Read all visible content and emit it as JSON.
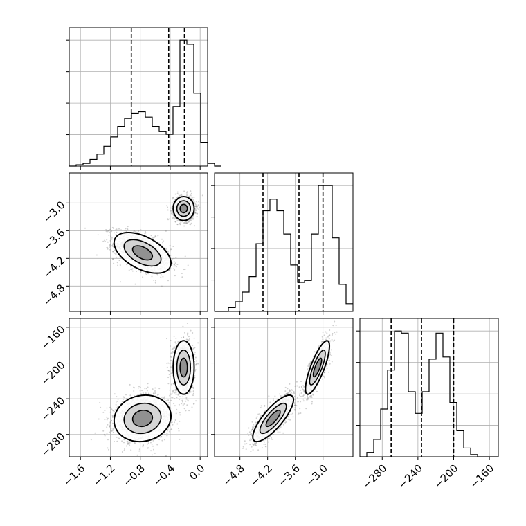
{
  "chart_data": {
    "type": "corner",
    "params": [
      {
        "range": [
          -1.75,
          0.1
        ],
        "ticks": [
          -1.6,
          -1.2,
          -0.8,
          -0.4,
          0.0
        ],
        "tick_labels": [
          "−1.6",
          "−1.2",
          "−0.8",
          "−0.4",
          "0.0"
        ],
        "quantiles": [
          -0.92,
          -0.42,
          -0.21
        ]
      },
      {
        "range": [
          -5.35,
          -2.35
        ],
        "ticks": [
          -4.8,
          -4.2,
          -3.6,
          -3.0
        ],
        "tick_labels": [
          "−4.8",
          "−4.2",
          "−3.6",
          "−3.0"
        ],
        "quantiles": [
          -4.3,
          -3.52,
          -3.0
        ]
      },
      {
        "range": [
          -305,
          -150
        ],
        "ticks": [
          -280,
          -240,
          -200,
          -160
        ],
        "tick_labels": [
          "−280",
          "−240",
          "−200",
          "−160"
        ],
        "quantiles": [
          -270,
          -236,
          -200
        ]
      }
    ],
    "histograms": [
      {
        "param": 0,
        "bin_start": -1.75,
        "bin_width": 0.0925,
        "counts": [
          0,
          1,
          2,
          5,
          9,
          15,
          22,
          30,
          36,
          40,
          41,
          37,
          30,
          26,
          24,
          45,
          95,
          92,
          55,
          18,
          2,
          0
        ]
      },
      {
        "param": 1,
        "bin_start": -5.35,
        "bin_width": 0.15,
        "counts": [
          0,
          0,
          2,
          5,
          10,
          18,
          35,
          52,
          58,
          52,
          40,
          24,
          15,
          16,
          40,
          65,
          65,
          38,
          14,
          4
        ]
      },
      {
        "param": 2,
        "bin_start": -305,
        "bin_width": 7.75,
        "counts": [
          0,
          2,
          8,
          22,
          40,
          58,
          57,
          30,
          20,
          30,
          45,
          57,
          46,
          25,
          12,
          4,
          1,
          0,
          0,
          0
        ]
      }
    ],
    "clusters": [
      {
        "weight": 0.55,
        "mean": [
          -0.77,
          -4.08,
          -262
        ],
        "std": [
          0.19,
          0.22,
          13
        ],
        "corr": {
          "0,1": -0.5,
          "0,2": 0.1,
          "1,2": 0.8
        }
      },
      {
        "weight": 0.45,
        "mean": [
          -0.22,
          -3.12,
          -205
        ],
        "std": [
          0.07,
          0.13,
          15
        ],
        "corr": {
          "0,1": 0.0,
          "0,2": 0.0,
          "1,2": 0.8
        }
      }
    ],
    "grid": true
  }
}
